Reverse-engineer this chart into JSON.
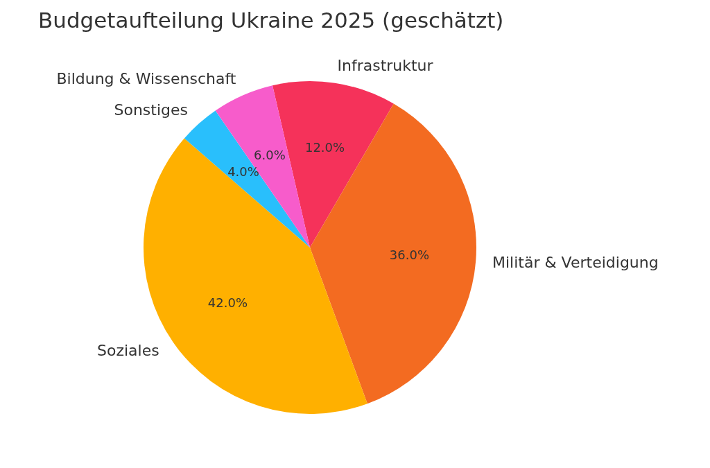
{
  "chart_data": {
    "type": "pie",
    "title": "Budgetaufteilung Ukraine 2025 (geschätzt)",
    "categories": [
      "Infrastruktur",
      "Militär & Verteidigung",
      "Soziales",
      "Sonstiges",
      "Bildung & Wissenschaft"
    ],
    "values": [
      12,
      36,
      42,
      4,
      6
    ],
    "value_labels": [
      "12.0%",
      "36.0%",
      "42.0%",
      "4.0%",
      "6.0%"
    ],
    "colors": [
      "#f5325a",
      "#f36b21",
      "#ffb000",
      "#29bffc",
      "#f75ccb"
    ]
  }
}
